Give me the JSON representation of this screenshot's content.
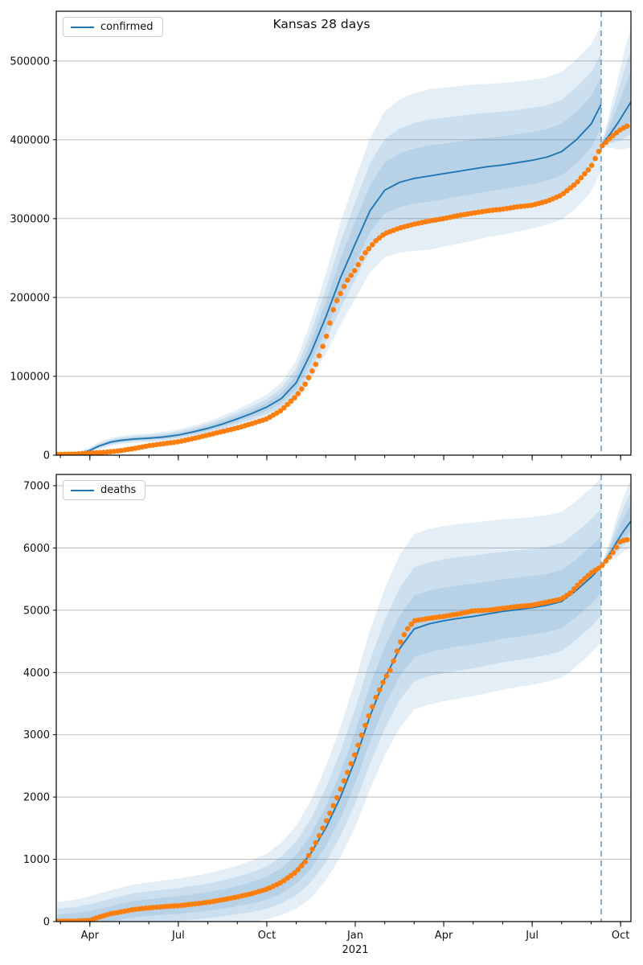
{
  "title": "Kansas 28 days",
  "colors": {
    "fit_line": "#1f77b4",
    "observed_dots": "#ff7f0e",
    "band_fill": "#1f77b4",
    "band_opacity": 0.12,
    "grid": "#b8b8b8",
    "dashed_now_line": "#74a3c9",
    "spine": "#000000",
    "text": "#111111"
  },
  "x_axis": {
    "unit": "months_since_2020-01-01",
    "xlim": [
      1.86,
      21.35
    ],
    "minor_ticks": [
      2,
      3,
      4,
      5,
      6,
      7,
      8,
      9,
      10,
      11,
      12,
      13,
      14,
      15,
      16,
      17,
      18,
      19,
      20,
      21
    ],
    "major_ticks": [
      {
        "m": 3,
        "label": "Apr"
      },
      {
        "m": 6,
        "label": "Jul"
      },
      {
        "m": 9,
        "label": "Oct"
      },
      {
        "m": 12,
        "label": "Jan",
        "year": "2021"
      },
      {
        "m": 15,
        "label": "Apr"
      },
      {
        "m": 18,
        "label": "Jul"
      },
      {
        "m": 21,
        "label": "Oct"
      }
    ]
  },
  "chart_data": [
    {
      "type": "line",
      "legend": "confirmed",
      "ylim": [
        0,
        563000
      ],
      "yticks": [
        0,
        100000,
        200000,
        300000,
        400000,
        500000
      ],
      "grid": true,
      "forecast_start_m": 20.34,
      "band_upper_factors": [
        1.0,
        0.65,
        0.35
      ],
      "band_lower_scale": 0.85,
      "fan_upper_factors": [
        1.0,
        0.7,
        0.4
      ],
      "fan_lower_scale": 0.6,
      "fit_line": [
        [
          2.6,
          1500,
          3000
        ],
        [
          3.0,
          6000,
          4000
        ],
        [
          3.3,
          11500,
          5000
        ],
        [
          3.7,
          16500,
          5500
        ],
        [
          4.0,
          18500,
          5600
        ],
        [
          4.5,
          20500,
          5800
        ],
        [
          5.0,
          21500,
          6000
        ],
        [
          5.5,
          23000,
          6500
        ],
        [
          6.0,
          25500,
          7000
        ],
        [
          6.5,
          29500,
          8000
        ],
        [
          7.0,
          34000,
          9000
        ],
        [
          7.5,
          39500,
          10500
        ],
        [
          8.0,
          46000,
          12000
        ],
        [
          8.5,
          53000,
          14000
        ],
        [
          9.0,
          61000,
          16000
        ],
        [
          9.5,
          72000,
          20000
        ],
        [
          10.0,
          92000,
          28000
        ],
        [
          10.5,
          130000,
          40000
        ],
        [
          11.0,
          175000,
          55000
        ],
        [
          11.5,
          225000,
          70000
        ],
        [
          12.0,
          268000,
          82000
        ],
        [
          12.5,
          310000,
          92000
        ],
        [
          13.0,
          336000,
          100000
        ],
        [
          13.5,
          346000,
          105000
        ],
        [
          14.0,
          351000,
          108000
        ],
        [
          14.5,
          354000,
          110000
        ],
        [
          15.0,
          357000,
          109000
        ],
        [
          15.5,
          360000,
          108000
        ],
        [
          16.0,
          363000,
          107000
        ],
        [
          16.5,
          366000,
          105000
        ],
        [
          17.0,
          368000,
          104000
        ],
        [
          17.5,
          371000,
          103000
        ],
        [
          18.0,
          374000,
          102000
        ],
        [
          18.5,
          378000,
          101000
        ],
        [
          19.0,
          385000,
          101000
        ],
        [
          19.5,
          400000,
          102000
        ],
        [
          20.0,
          420000,
          101000
        ],
        [
          20.34,
          445000,
          100000
        ]
      ],
      "observed": [
        [
          1.9,
          900
        ],
        [
          2.5,
          1400
        ],
        [
          3.0,
          2500
        ],
        [
          3.5,
          3600
        ],
        [
          4.0,
          5500
        ],
        [
          4.5,
          8500
        ],
        [
          5.0,
          12000
        ],
        [
          5.5,
          14500
        ],
        [
          6.0,
          17000
        ],
        [
          6.5,
          21000
        ],
        [
          7.0,
          25500
        ],
        [
          7.5,
          30000
        ],
        [
          8.0,
          34500
        ],
        [
          8.5,
          40000
        ],
        [
          9.0,
          46000
        ],
        [
          9.5,
          57000
        ],
        [
          10.0,
          75000
        ],
        [
          10.3,
          90000
        ],
        [
          10.7,
          118000
        ],
        [
          11.0,
          148000
        ],
        [
          11.3,
          190000
        ],
        [
          11.7,
          220000
        ],
        [
          12.0,
          235000
        ],
        [
          12.3,
          255000
        ],
        [
          12.7,
          272000
        ],
        [
          13.0,
          281000
        ],
        [
          13.5,
          288000
        ],
        [
          14.0,
          293000
        ],
        [
          14.5,
          297000
        ],
        [
          15.0,
          300000
        ],
        [
          15.5,
          304000
        ],
        [
          16.0,
          307000
        ],
        [
          16.5,
          310000
        ],
        [
          17.0,
          312000
        ],
        [
          17.5,
          315000
        ],
        [
          18.0,
          317000
        ],
        [
          18.5,
          322000
        ],
        [
          19.0,
          330000
        ],
        [
          19.5,
          345000
        ],
        [
          20.0,
          366000
        ],
        [
          20.34,
          391000
        ],
        [
          20.7,
          404000
        ],
        [
          21.0,
          413000
        ],
        [
          21.3,
          419000
        ]
      ],
      "forecast": [
        [
          20.34,
          393000,
          0
        ],
        [
          20.6,
          405000,
          25000
        ],
        [
          20.9,
          421000,
          55000
        ],
        [
          21.1,
          433000,
          75000
        ],
        [
          21.35,
          448000,
          95000
        ]
      ]
    },
    {
      "type": "line",
      "legend": "deaths",
      "ylim": [
        0,
        7180
      ],
      "yticks": [
        0,
        1000,
        2000,
        3000,
        4000,
        5000,
        6000,
        7000
      ],
      "grid": true,
      "forecast_start_m": 20.34,
      "band_upper_factors": [
        1.0,
        0.65,
        0.35
      ],
      "band_lower_scale": 0.85,
      "fan_upper_factors": [
        1.0,
        0.7,
        0.4
      ],
      "fan_lower_scale": 0.6,
      "fit_line": [
        [
          1.9,
          10,
          300
        ],
        [
          2.5,
          20,
          330
        ],
        [
          3.0,
          45,
          360
        ],
        [
          3.5,
          95,
          380
        ],
        [
          4.0,
          145,
          395
        ],
        [
          4.5,
          190,
          405
        ],
        [
          5.0,
          215,
          415
        ],
        [
          5.5,
          235,
          425
        ],
        [
          6.0,
          255,
          435
        ],
        [
          6.5,
          280,
          450
        ],
        [
          7.0,
          310,
          465
        ],
        [
          7.5,
          350,
          480
        ],
        [
          8.0,
          395,
          500
        ],
        [
          8.5,
          450,
          530
        ],
        [
          9.0,
          520,
          570
        ],
        [
          9.5,
          640,
          630
        ],
        [
          10.0,
          820,
          720
        ],
        [
          10.5,
          1100,
          850
        ],
        [
          11.0,
          1500,
          990
        ],
        [
          11.5,
          2000,
          1130
        ],
        [
          12.0,
          2600,
          1270
        ],
        [
          12.5,
          3300,
          1380
        ],
        [
          13.0,
          3900,
          1450
        ],
        [
          13.5,
          4380,
          1500
        ],
        [
          14.0,
          4700,
          1520
        ],
        [
          14.5,
          4780,
          1525
        ],
        [
          15.0,
          4830,
          1520
        ],
        [
          15.5,
          4870,
          1515
        ],
        [
          16.0,
          4900,
          1505
        ],
        [
          16.5,
          4940,
          1495
        ],
        [
          17.0,
          4980,
          1480
        ],
        [
          17.5,
          5010,
          1465
        ],
        [
          18.0,
          5040,
          1455
        ],
        [
          18.5,
          5080,
          1445
        ],
        [
          19.0,
          5140,
          1440
        ],
        [
          19.5,
          5320,
          1435
        ],
        [
          20.0,
          5530,
          1430
        ],
        [
          20.34,
          5700,
          1430
        ]
      ],
      "observed": [
        [
          1.9,
          5
        ],
        [
          2.5,
          8
        ],
        [
          3.0,
          20
        ],
        [
          3.3,
          70
        ],
        [
          3.7,
          125
        ],
        [
          4.0,
          150
        ],
        [
          4.5,
          195
        ],
        [
          5.0,
          220
        ],
        [
          5.5,
          240
        ],
        [
          6.0,
          255
        ],
        [
          6.5,
          280
        ],
        [
          7.0,
          310
        ],
        [
          7.5,
          350
        ],
        [
          8.0,
          395
        ],
        [
          8.5,
          450
        ],
        [
          9.0,
          520
        ],
        [
          9.5,
          630
        ],
        [
          10.0,
          800
        ],
        [
          10.3,
          960
        ],
        [
          10.7,
          1300
        ],
        [
          11.0,
          1600
        ],
        [
          11.3,
          1900
        ],
        [
          11.7,
          2350
        ],
        [
          12.0,
          2700
        ],
        [
          12.3,
          3100
        ],
        [
          12.7,
          3600
        ],
        [
          13.0,
          3900
        ],
        [
          13.2,
          4050
        ],
        [
          13.4,
          4320
        ],
        [
          13.6,
          4560
        ],
        [
          13.8,
          4720
        ],
        [
          14.0,
          4830
        ],
        [
          14.5,
          4870
        ],
        [
          15.0,
          4900
        ],
        [
          15.5,
          4940
        ],
        [
          16.0,
          4990
        ],
        [
          16.5,
          5000
        ],
        [
          17.0,
          5030
        ],
        [
          17.5,
          5060
        ],
        [
          18.0,
          5080
        ],
        [
          18.5,
          5130
        ],
        [
          19.0,
          5180
        ],
        [
          19.3,
          5280
        ],
        [
          19.6,
          5430
        ],
        [
          20.0,
          5600
        ],
        [
          20.34,
          5700
        ],
        [
          20.7,
          5900
        ],
        [
          21.0,
          6110
        ],
        [
          21.3,
          6140
        ]
      ],
      "forecast": [
        [
          20.34,
          5700,
          0
        ],
        [
          20.6,
          5880,
          180
        ],
        [
          20.9,
          6120,
          420
        ],
        [
          21.1,
          6270,
          550
        ],
        [
          21.35,
          6430,
          680
        ]
      ]
    }
  ]
}
